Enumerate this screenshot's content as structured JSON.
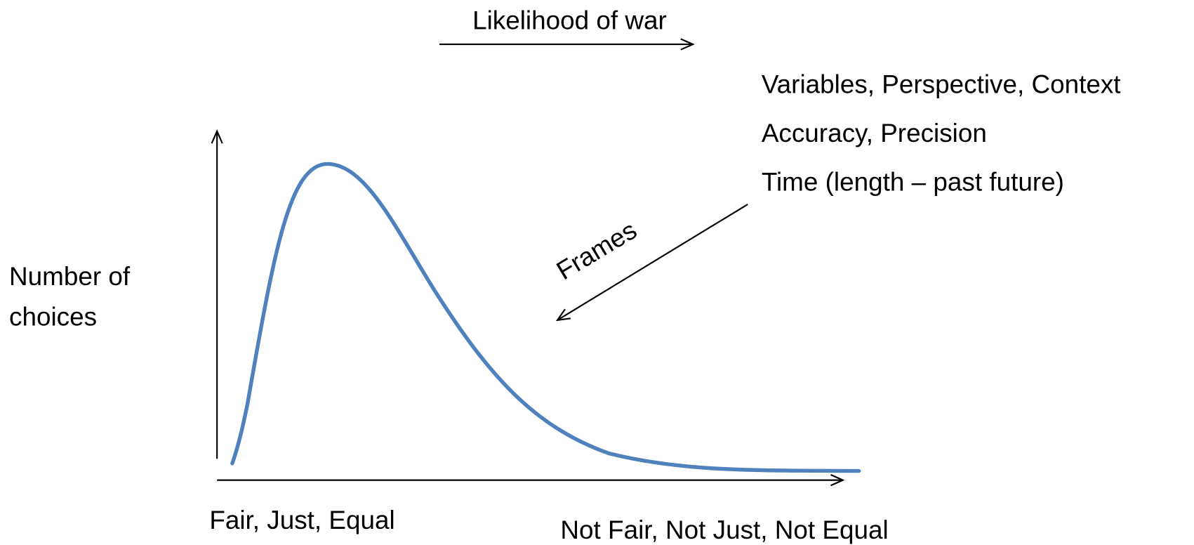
{
  "top_axis": {
    "label": "Likelihood of war"
  },
  "factors": [
    "Variables, Perspective, Context",
    "Accuracy, Precision",
    "Time (length – past future)"
  ],
  "frames_label": "Frames",
  "y_axis_label": [
    "Number of",
    "choices"
  ],
  "x_axis_labels": {
    "left": "Fair, Just, Equal",
    "right": "Not Fair, Not Just, Not Equal"
  }
}
